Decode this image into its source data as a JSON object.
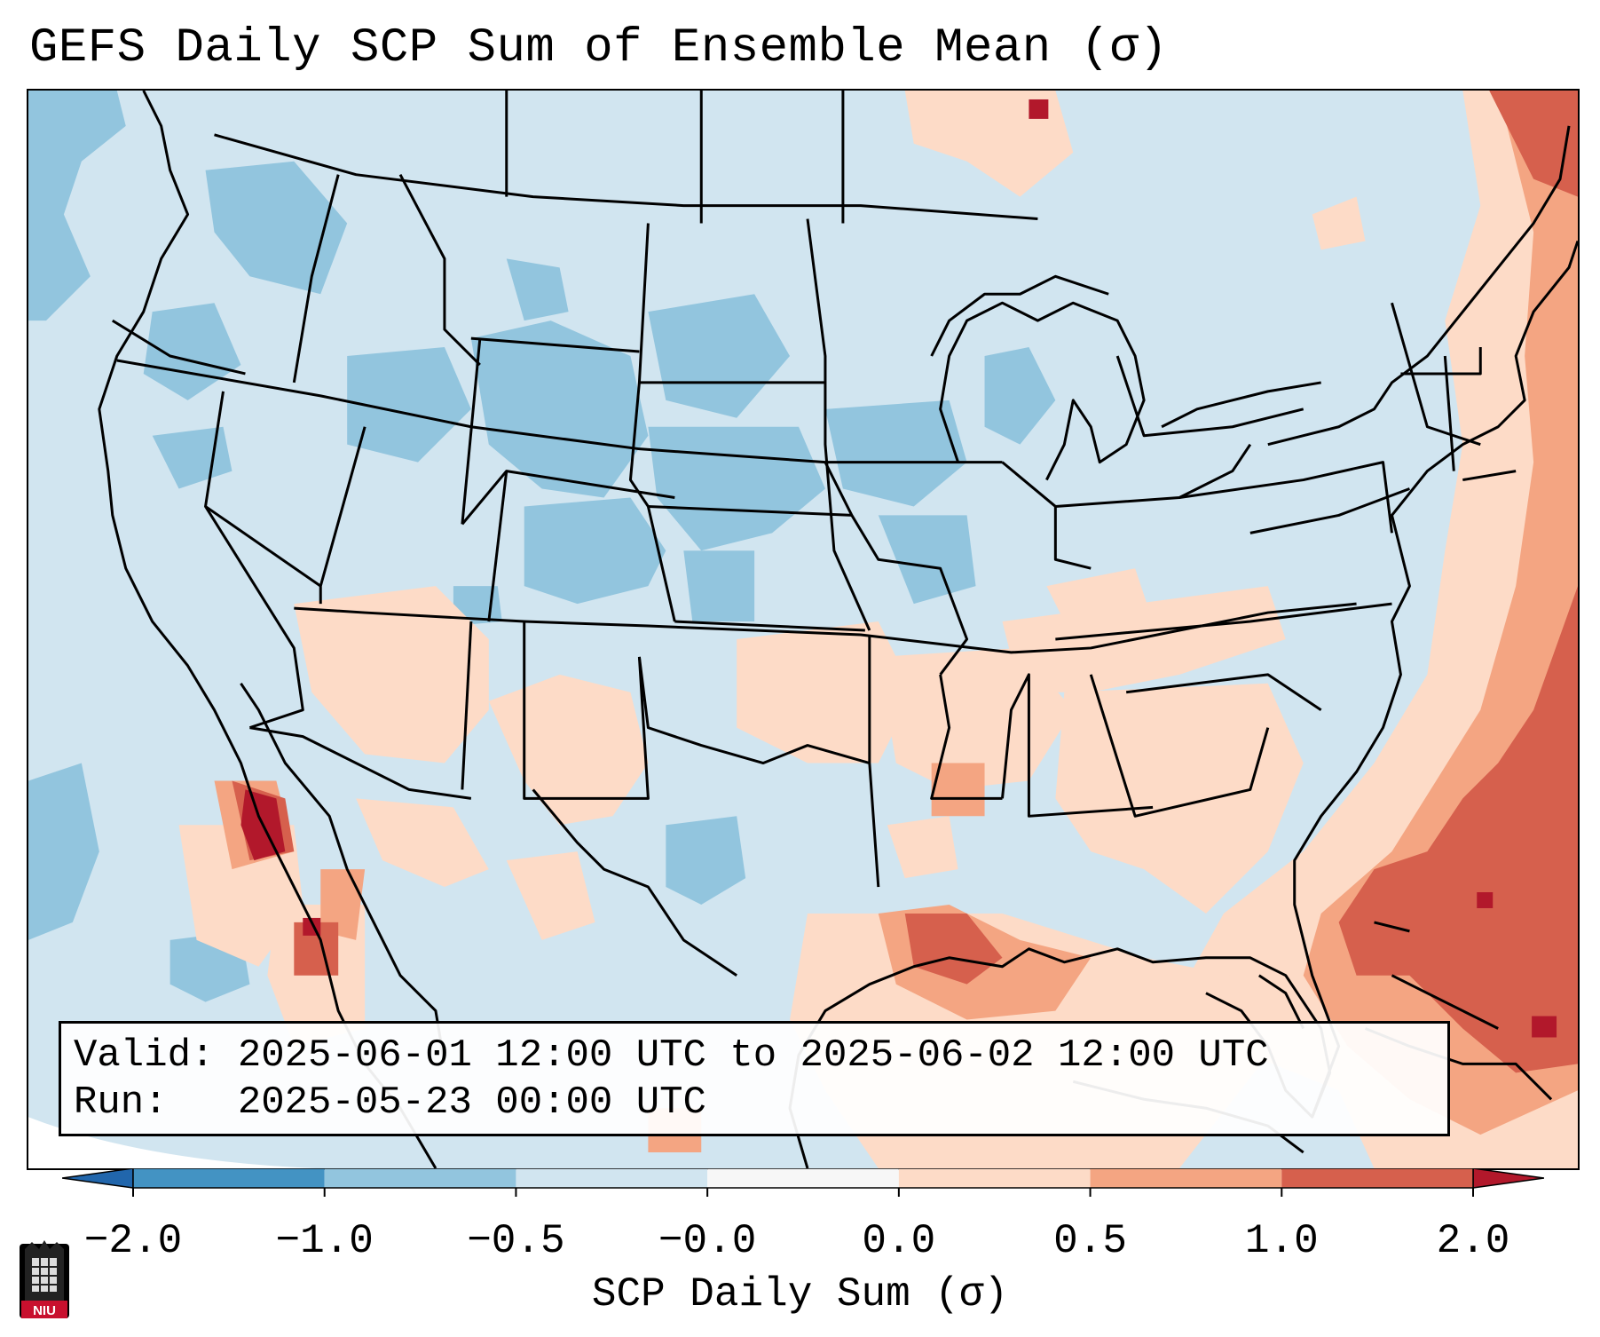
{
  "title": "GEFS Daily SCP Sum of Ensemble Mean (σ)",
  "info": {
    "valid_label": "Valid:",
    "valid_value": "2025-06-01 12:00 UTC to 2025-06-02 12:00 UTC",
    "run_label": "Run:",
    "run_value": "2025-05-23 00:00 UTC"
  },
  "colorbar": {
    "label": "SCP Daily Sum (σ)",
    "ticks": [
      "−2.0",
      "−1.0",
      "−0.5",
      "−0.0",
      "0.0",
      "0.5",
      "1.0",
      "2.0"
    ],
    "colors": [
      "#4393c3",
      "#92c5de",
      "#d1e5f0",
      "#f7f7f7",
      "#fddbc7",
      "#f4a582",
      "#d6604d"
    ],
    "extend_low_color": "#2166ac",
    "extend_high_color": "#b2182b"
  },
  "logo": {
    "text": "NIU"
  },
  "palette": {
    "background": "#d1e5f0",
    "neg_mid": "#92c5de",
    "pos_low": "#fddbc7",
    "pos_mid": "#f4a582",
    "pos_high": "#d6604d",
    "pos_max": "#b2182b"
  }
}
